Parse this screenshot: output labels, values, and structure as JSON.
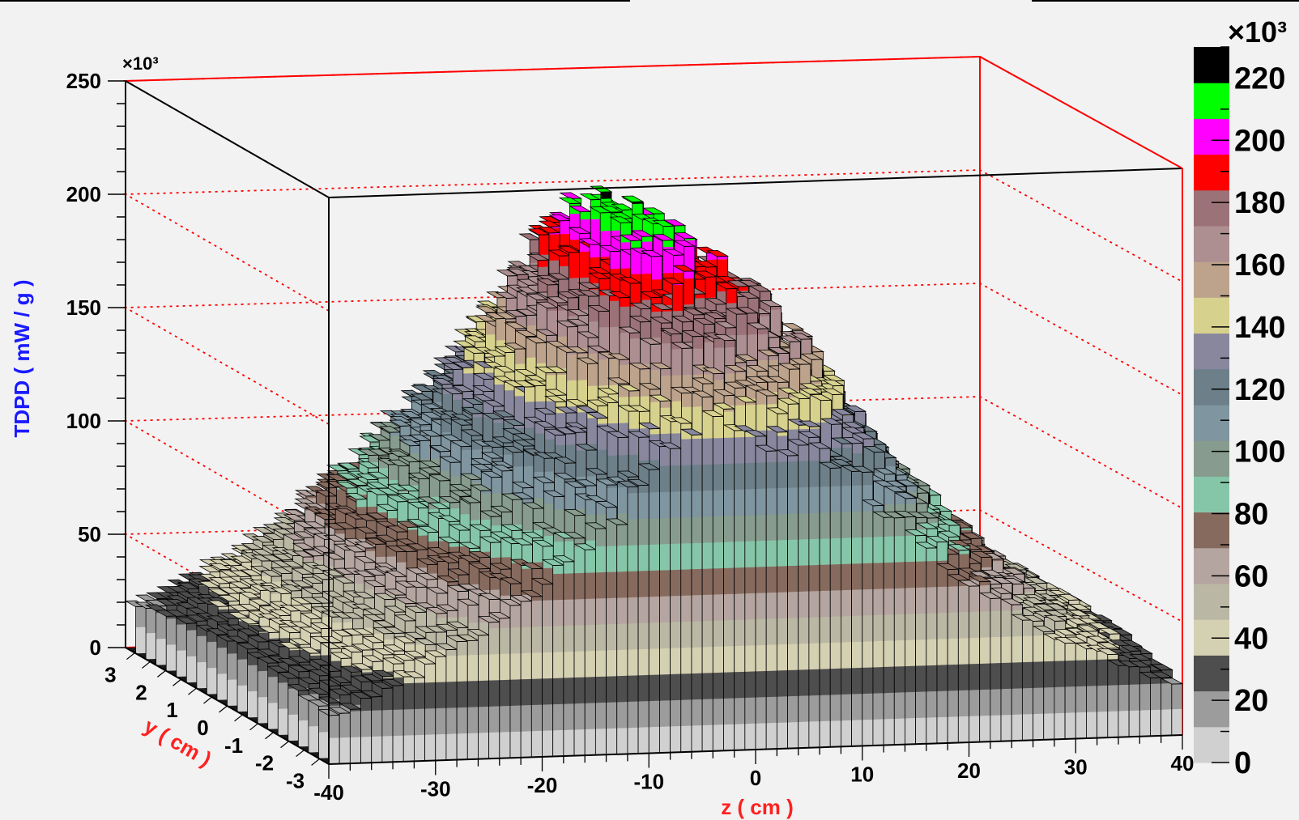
{
  "chart_data": {
    "type": "lego3d",
    "zlabel": "TDPD ( mW / g )",
    "zlabel_color": "#1a1aff",
    "ylabel": "y ( cm )",
    "xlabel": "z ( cm )",
    "axis_label_color": "#ff2020",
    "zaxis_multiplier": "×10³",
    "zaxis_ticks": [
      0,
      50,
      100,
      150,
      200,
      250
    ],
    "zlim": [
      0,
      250
    ],
    "xaxis_ticks": [
      -40,
      -30,
      -20,
      -10,
      0,
      10,
      20,
      30,
      40
    ],
    "xlim": [
      -40,
      40
    ],
    "yaxis_ticks": [
      3,
      2,
      1,
      0,
      -1,
      -2,
      -3
    ],
    "ylim": [
      -3.3,
      3.3
    ],
    "x_bin_count": 80,
    "y_bin_count": 20,
    "profile_description_values": {
      "x": [
        -40,
        -30,
        -20,
        -10,
        -5,
        0,
        10,
        20,
        30,
        40
      ],
      "peak_value": [
        28,
        60,
        110,
        170,
        215,
        205,
        170,
        105,
        60,
        32
      ]
    },
    "colorbar": {
      "multiplier": "×10³",
      "ticks": [
        0,
        20,
        40,
        60,
        80,
        100,
        120,
        140,
        160,
        180,
        200,
        220
      ],
      "colors": [
        "#d0d0d0",
        "#9c9c9c",
        "#4e4e4e",
        "#d4d0b2",
        "#bab8a4",
        "#b5a5a0",
        "#876a5e",
        "#86c6a8",
        "#879c8e",
        "#7f95a0",
        "#6d7f88",
        "#88879e",
        "#d7d18e",
        "#bda38c",
        "#ad8f91",
        "#9b7277",
        "#ff0000",
        "#ff00ff",
        "#00ff00",
        "#000000"
      ],
      "range": [
        0,
        230
      ]
    },
    "grid": true
  }
}
